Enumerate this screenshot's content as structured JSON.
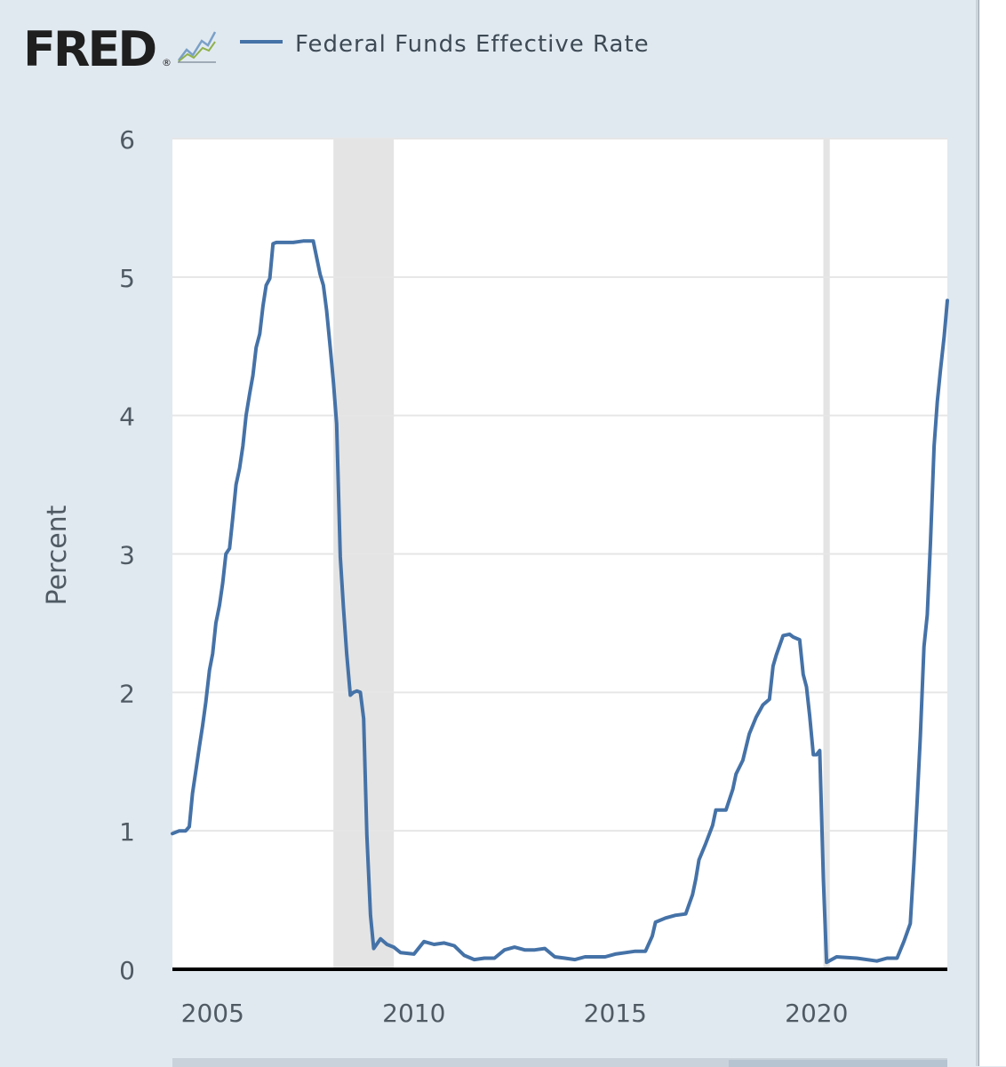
{
  "brand": {
    "logo_text": "FRED",
    "registered_mark": "®",
    "logo_icon": "trend-line-icon"
  },
  "legend": {
    "label": "Federal Funds Effective Rate",
    "color": "#4572a7"
  },
  "chart_data": {
    "type": "line",
    "title": "",
    "xlabel": "",
    "ylabel": "Percent",
    "xlim": [
      2004.0,
      2023.25
    ],
    "ylim": [
      0,
      6
    ],
    "y_ticks": [
      0,
      1,
      2,
      3,
      4,
      5,
      6
    ],
    "x_ticks": [
      2005,
      2010,
      2015,
      2020
    ],
    "grid": true,
    "recessions": [
      [
        2008.0,
        2009.5
      ],
      [
        2020.17,
        2020.33
      ]
    ],
    "series": [
      {
        "name": "Federal Funds Effective Rate",
        "color": "#4572a7",
        "x": [
          2004.0,
          2004.17,
          2004.33,
          2004.42,
          2004.5,
          2004.58,
          2004.67,
          2004.75,
          2004.83,
          2004.92,
          2005.0,
          2005.08,
          2005.17,
          2005.25,
          2005.33,
          2005.42,
          2005.5,
          2005.58,
          2005.67,
          2005.75,
          2005.83,
          2005.92,
          2006.0,
          2006.08,
          2006.17,
          2006.25,
          2006.33,
          2006.42,
          2006.5,
          2006.58,
          2006.75,
          2007.0,
          2007.25,
          2007.5,
          2007.67,
          2007.75,
          2007.83,
          2007.92,
          2008.0,
          2008.08,
          2008.17,
          2008.25,
          2008.33,
          2008.42,
          2008.5,
          2008.58,
          2008.67,
          2008.75,
          2008.83,
          2008.92,
          2009.0,
          2009.17,
          2009.33,
          2009.5,
          2009.67,
          2010.0,
          2010.25,
          2010.5,
          2010.75,
          2011.0,
          2011.25,
          2011.5,
          2011.75,
          2012.0,
          2012.25,
          2012.5,
          2012.75,
          2013.0,
          2013.25,
          2013.5,
          2013.75,
          2014.0,
          2014.25,
          2014.5,
          2014.75,
          2015.0,
          2015.25,
          2015.5,
          2015.75,
          2015.92,
          2016.0,
          2016.25,
          2016.5,
          2016.75,
          2016.92,
          2017.0,
          2017.08,
          2017.25,
          2017.42,
          2017.5,
          2017.75,
          2017.92,
          2018.0,
          2018.17,
          2018.33,
          2018.5,
          2018.67,
          2018.83,
          2018.92,
          2019.0,
          2019.17,
          2019.33,
          2019.42,
          2019.58,
          2019.67,
          2019.75,
          2019.83,
          2019.92,
          2020.0,
          2020.08,
          2020.17,
          2020.25,
          2020.5,
          2021.0,
          2021.5,
          2021.75,
          2022.0,
          2022.17,
          2022.33,
          2022.42,
          2022.5,
          2022.58,
          2022.67,
          2022.75,
          2022.83,
          2022.92,
          2023.0,
          2023.08,
          2023.17,
          2023.25
        ],
        "y": [
          0.98,
          1.0,
          1.0,
          1.03,
          1.27,
          1.43,
          1.61,
          1.76,
          1.93,
          2.16,
          2.28,
          2.5,
          2.63,
          2.79,
          3.0,
          3.04,
          3.26,
          3.5,
          3.62,
          3.78,
          4.0,
          4.16,
          4.29,
          4.49,
          4.59,
          4.79,
          4.94,
          4.99,
          5.24,
          5.25,
          5.25,
          5.25,
          5.26,
          5.26,
          5.02,
          4.94,
          4.76,
          4.49,
          4.24,
          3.94,
          2.98,
          2.61,
          2.28,
          1.98,
          2.0,
          2.01,
          2.0,
          1.81,
          0.97,
          0.39,
          0.15,
          0.22,
          0.18,
          0.16,
          0.12,
          0.11,
          0.2,
          0.18,
          0.19,
          0.17,
          0.1,
          0.07,
          0.08,
          0.08,
          0.14,
          0.16,
          0.14,
          0.14,
          0.15,
          0.09,
          0.08,
          0.07,
          0.09,
          0.09,
          0.09,
          0.11,
          0.12,
          0.13,
          0.13,
          0.24,
          0.34,
          0.37,
          0.39,
          0.4,
          0.54,
          0.65,
          0.79,
          0.91,
          1.04,
          1.15,
          1.15,
          1.3,
          1.41,
          1.51,
          1.7,
          1.82,
          1.91,
          1.95,
          2.19,
          2.27,
          2.41,
          2.42,
          2.4,
          2.38,
          2.13,
          2.04,
          1.83,
          1.55,
          1.55,
          1.58,
          0.65,
          0.05,
          0.09,
          0.08,
          0.06,
          0.08,
          0.08,
          0.2,
          0.33,
          0.77,
          1.21,
          1.68,
          2.33,
          2.56,
          3.08,
          3.78,
          4.1,
          4.33,
          4.57,
          4.83
        ]
      }
    ]
  }
}
